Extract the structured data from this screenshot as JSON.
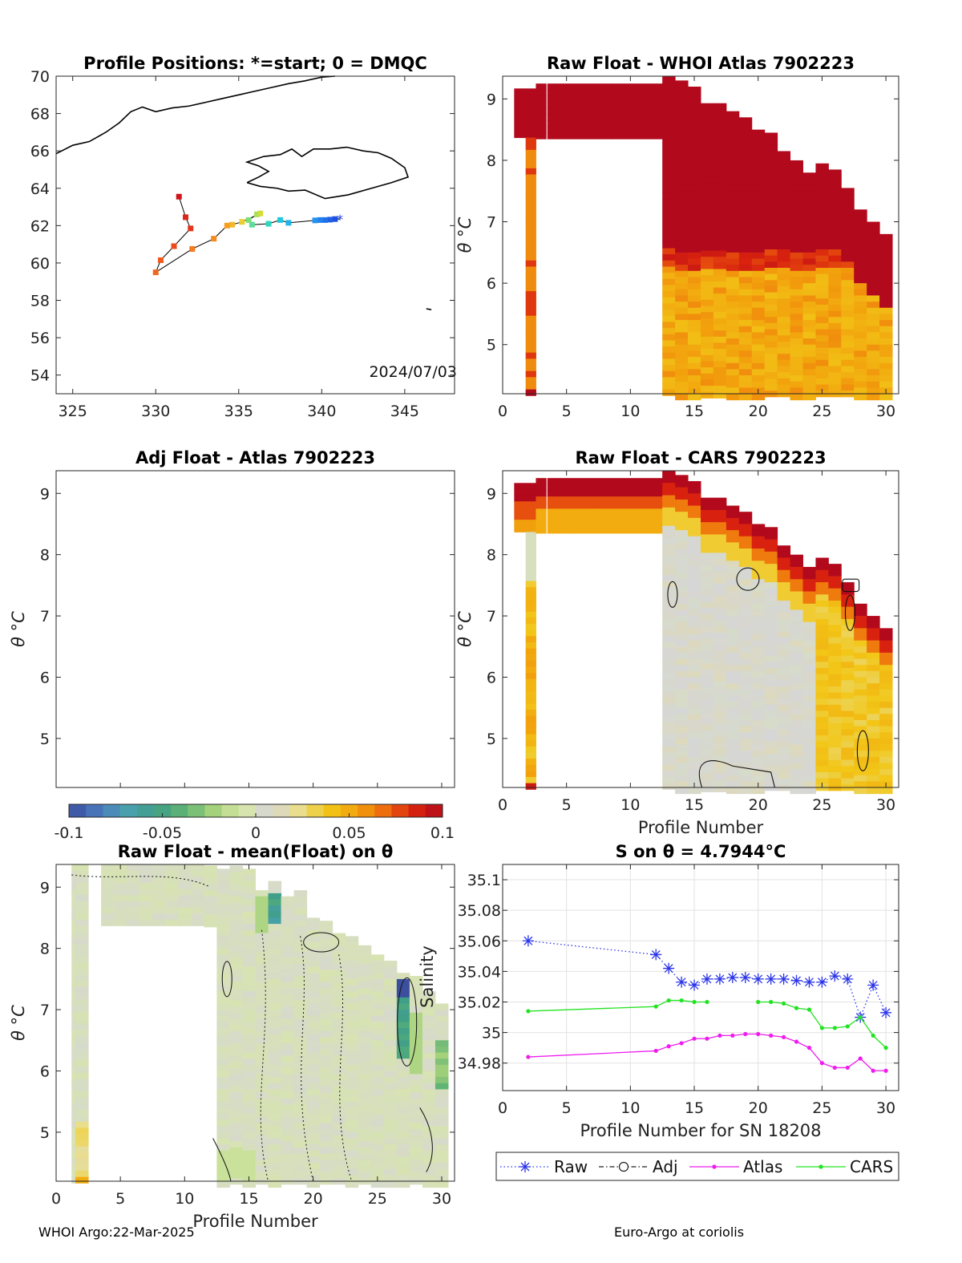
{
  "footer": {
    "left": "WHOI Argo:22-Mar-2025",
    "right": "Euro-Argo at coriolis"
  },
  "colorbar": {
    "min": -0.1,
    "max": 0.1,
    "ticks": [
      "-0.1",
      "-0.05",
      "0",
      "0.05",
      "0.1"
    ],
    "colors": [
      "#3b4f9e",
      "#4a78bd",
      "#4aa0b0",
      "#3f9f88",
      "#5fb374",
      "#a3d07a",
      "#d8e7a6",
      "#d6d6d6",
      "#e9de8c",
      "#f2c718",
      "#f2a30d",
      "#ee6a0d",
      "#d9230f",
      "#b2091c"
    ]
  },
  "chart_data": [
    {
      "id": "positions",
      "type": "scatter",
      "title": "Profile Positions: *=start; 0 = DMQC",
      "xlim": [
        324,
        348
      ],
      "ylim": [
        53,
        70
      ],
      "xticks": [
        "325",
        "330",
        "335",
        "340",
        "345"
      ],
      "yticks": [
        "54",
        "56",
        "58",
        "60",
        "62",
        "64",
        "66",
        "68",
        "70"
      ],
      "annotation": "2024/07/03",
      "track": [
        [
          341.1,
          62.35,
          "#1f3fd8"
        ],
        [
          340.8,
          62.35,
          "#1f4fe0"
        ],
        [
          340.5,
          62.32,
          "#2060e6"
        ],
        [
          340.2,
          62.3,
          "#2070ea"
        ],
        [
          339.9,
          62.3,
          "#2080ee"
        ],
        [
          339.6,
          62.28,
          "#2393ee"
        ],
        [
          338.0,
          62.15,
          "#22b3e8"
        ],
        [
          337.5,
          62.3,
          "#20c8dd"
        ],
        [
          336.8,
          62.1,
          "#30d6c0"
        ],
        [
          335.8,
          62.05,
          "#5adc9a"
        ],
        [
          335.6,
          62.3,
          "#7adf7a"
        ],
        [
          336.1,
          62.6,
          "#a6e05a"
        ],
        [
          336.3,
          62.65,
          "#d3dd3a"
        ],
        [
          335.2,
          62.2,
          "#e9d030"
        ],
        [
          334.6,
          62.05,
          "#f2b82a"
        ],
        [
          334.3,
          62.0,
          "#f5a020"
        ],
        [
          333.5,
          61.3,
          "#f58a20"
        ],
        [
          332.2,
          60.75,
          "#f57a20"
        ],
        [
          330.0,
          59.5,
          "#f06820"
        ],
        [
          330.3,
          60.15,
          "#ee5a20"
        ],
        [
          331.1,
          60.9,
          "#eb4a1f"
        ],
        [
          332.1,
          61.85,
          "#e3361c"
        ],
        [
          331.8,
          62.45,
          "#da261b"
        ],
        [
          331.4,
          63.55,
          "#cf141a"
        ]
      ]
    },
    {
      "id": "raw-atlas",
      "type": "heatmap",
      "title": "Raw Float - WHOI Atlas  7902223",
      "xlabel": "",
      "ylabel": "θ °C",
      "xlim": [
        0,
        31
      ],
      "ylim": [
        4.2,
        9.37
      ],
      "xticks": [
        "0",
        "5",
        "10",
        "15",
        "20",
        "25",
        "30"
      ],
      "yticks": [
        "5",
        "6",
        "7",
        "8",
        "9"
      ]
    },
    {
      "id": "adj-atlas",
      "type": "heatmap",
      "title": "Adj Float - Atlas  7902223",
      "xlabel": "",
      "ylabel": "θ °C",
      "xlim": [
        0,
        31
      ],
      "ylim": [
        4.2,
        9.37
      ],
      "xticks": [],
      "yticks": [
        "5",
        "6",
        "7",
        "8",
        "9"
      ]
    },
    {
      "id": "raw-cars",
      "type": "heatmap",
      "title": "Raw Float - CARS  7902223",
      "xlabel": "Profile Number",
      "ylabel": "θ °C",
      "xlim": [
        0,
        31
      ],
      "ylim": [
        4.2,
        9.37
      ],
      "xticks": [
        "0",
        "5",
        "10",
        "15",
        "20",
        "25",
        "30"
      ],
      "yticks": [
        "5",
        "6",
        "7",
        "8",
        "9"
      ]
    },
    {
      "id": "raw-mean",
      "type": "heatmap",
      "title": "Raw Float - mean(Float) on θ",
      "xlabel": "Profile Number",
      "ylabel": "θ °C",
      "xlim": [
        0,
        31
      ],
      "ylim": [
        4.2,
        9.37
      ],
      "xticks": [
        "0",
        "5",
        "10",
        "15",
        "20",
        "25",
        "30"
      ],
      "yticks": [
        "5",
        "6",
        "7",
        "8",
        "9"
      ]
    },
    {
      "id": "salinity",
      "type": "line",
      "title": "S on θ = 4.7944°C",
      "xlabel": "Profile Number for SN 18208",
      "ylabel": "Salinity",
      "xlim": [
        0,
        31
      ],
      "ylim": [
        34.962,
        35.11
      ],
      "xticks": [
        "0",
        "5",
        "10",
        "15",
        "20",
        "25",
        "30"
      ],
      "yticks": [
        "34.98",
        "35",
        "35.02",
        "35.04",
        "35.06",
        "35.08",
        "35.1"
      ],
      "legend": [
        "Raw",
        "Adj",
        "Atlas",
        "CARS"
      ],
      "x": [
        2,
        12,
        13,
        14,
        15,
        16,
        17,
        18,
        19,
        20,
        21,
        22,
        23,
        24,
        25,
        26,
        27,
        28,
        29,
        30
      ],
      "series": [
        {
          "name": "Raw",
          "color": "#2b35e8",
          "values": [
            35.06,
            35.051,
            35.042,
            35.033,
            35.031,
            35.035,
            35.035,
            35.036,
            35.036,
            35.035,
            35.035,
            35.035,
            35.034,
            35.033,
            35.033,
            35.037,
            35.035,
            35.01,
            35.031,
            35.013
          ]
        },
        {
          "name": "Atlas",
          "color": "#ee1dee",
          "values": [
            34.984,
            34.988,
            34.991,
            34.993,
            34.996,
            34.996,
            34.998,
            34.998,
            34.999,
            34.999,
            34.998,
            34.997,
            34.994,
            34.99,
            34.98,
            34.977,
            34.977,
            34.983,
            34.975,
            34.975
          ]
        },
        {
          "name": "CARS",
          "color": "#22e322",
          "values": [
            35.014,
            35.017,
            35.021,
            35.021,
            35.02,
            35.02,
            null,
            null,
            null,
            35.02,
            35.02,
            35.019,
            35.016,
            35.015,
            35.003,
            35.003,
            35.004,
            35.01,
            34.998,
            34.99
          ]
        }
      ]
    }
  ]
}
